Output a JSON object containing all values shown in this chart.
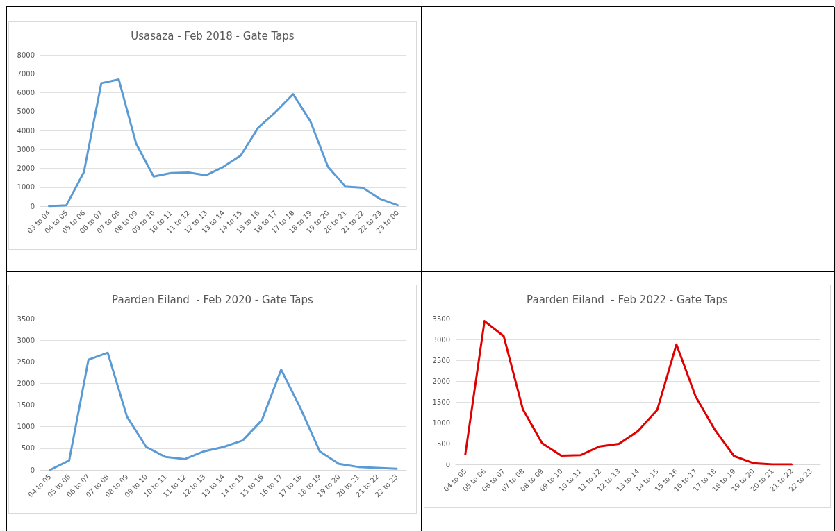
{
  "chart_data": [
    {
      "type": "line",
      "title": "Usasaza - Feb 2018 - Gate Taps",
      "categories": [
        "03 to 04",
        "04 to 05",
        "05 to 06",
        "06 to 07",
        "07 to 08",
        "08 to 09",
        "09 to 10",
        "10 to 11",
        "11 to 12",
        "12 to 13",
        "13 to 14",
        "14 to 15",
        "15 to 16",
        "16 to 17",
        "17 to 18",
        "18 to 19",
        "19 to 20",
        "20 to 21",
        "21 to 22",
        "22 to 23",
        "23 to 00"
      ],
      "series": [
        {
          "color": "#5b9bd5",
          "values": [
            0,
            50,
            1800,
            6500,
            6700,
            3300,
            1570,
            1750,
            1780,
            1630,
            2080,
            2680,
            4150,
            4980,
            5920,
            4480,
            2080,
            1040,
            970,
            380,
            50
          ]
        }
      ],
      "ylim": [
        0,
        8000
      ],
      "yticks": [
        0,
        1000,
        2000,
        3000,
        4000,
        5000,
        6000,
        7000,
        8000
      ],
      "grid": "y",
      "marker": "none",
      "line_style": "solid"
    },
    {
      "type": "line",
      "title": "Paarden Eiland  - Feb 2020 - Gate Taps",
      "categories": [
        "04 to 05",
        "05 to 06",
        "06 to 07",
        "07 to 08",
        "08 to 09",
        "09 to 10",
        "10 to 11",
        "11 to 12",
        "12 to 13",
        "13 to 14",
        "14 to 15",
        "15 to 16",
        "16 to 17",
        "17 to 18",
        "18 to 19",
        "19 to 20",
        "20 to 21",
        "21 to 22",
        "22 to 23"
      ],
      "series": [
        {
          "color": "#5b9bd5",
          "values": [
            0,
            220,
            2550,
            2710,
            1230,
            530,
            300,
            250,
            430,
            530,
            680,
            1150,
            2320,
            1430,
            430,
            140,
            70,
            50,
            30
          ]
        }
      ],
      "ylim": [
        0,
        3500
      ],
      "yticks": [
        0,
        500,
        1000,
        1500,
        2000,
        2500,
        3000,
        3500
      ],
      "grid": "y",
      "marker": "none",
      "line_style": "solid"
    },
    {
      "type": "line",
      "title": "Paarden Eiland  - Feb 2022 - Gate Taps",
      "categories": [
        "04 to 05",
        "05 to 06",
        "06 to 07",
        "07 to 08",
        "08 to 09",
        "09 to 10",
        "10 to 11",
        "11 to 12",
        "12 to 13",
        "13 to 14",
        "14 to 15",
        "15 to 16",
        "16 to 17",
        "17 to 18",
        "18 to 19",
        "19 to 20",
        "20 to 21",
        "21 to 22",
        "22 to 23"
      ],
      "series": [
        {
          "color": "#e00000",
          "values": [
            240,
            3440,
            3080,
            1320,
            510,
            210,
            220,
            430,
            490,
            800,
            1310,
            2880,
            1630,
            830,
            200,
            30,
            0,
            0,
            null
          ]
        }
      ],
      "ylim": [
        0,
        3500
      ],
      "yticks": [
        0,
        500,
        1000,
        1500,
        2000,
        2500,
        3000,
        3500
      ],
      "grid": "y",
      "marker": "none",
      "line_style": "solid"
    }
  ]
}
